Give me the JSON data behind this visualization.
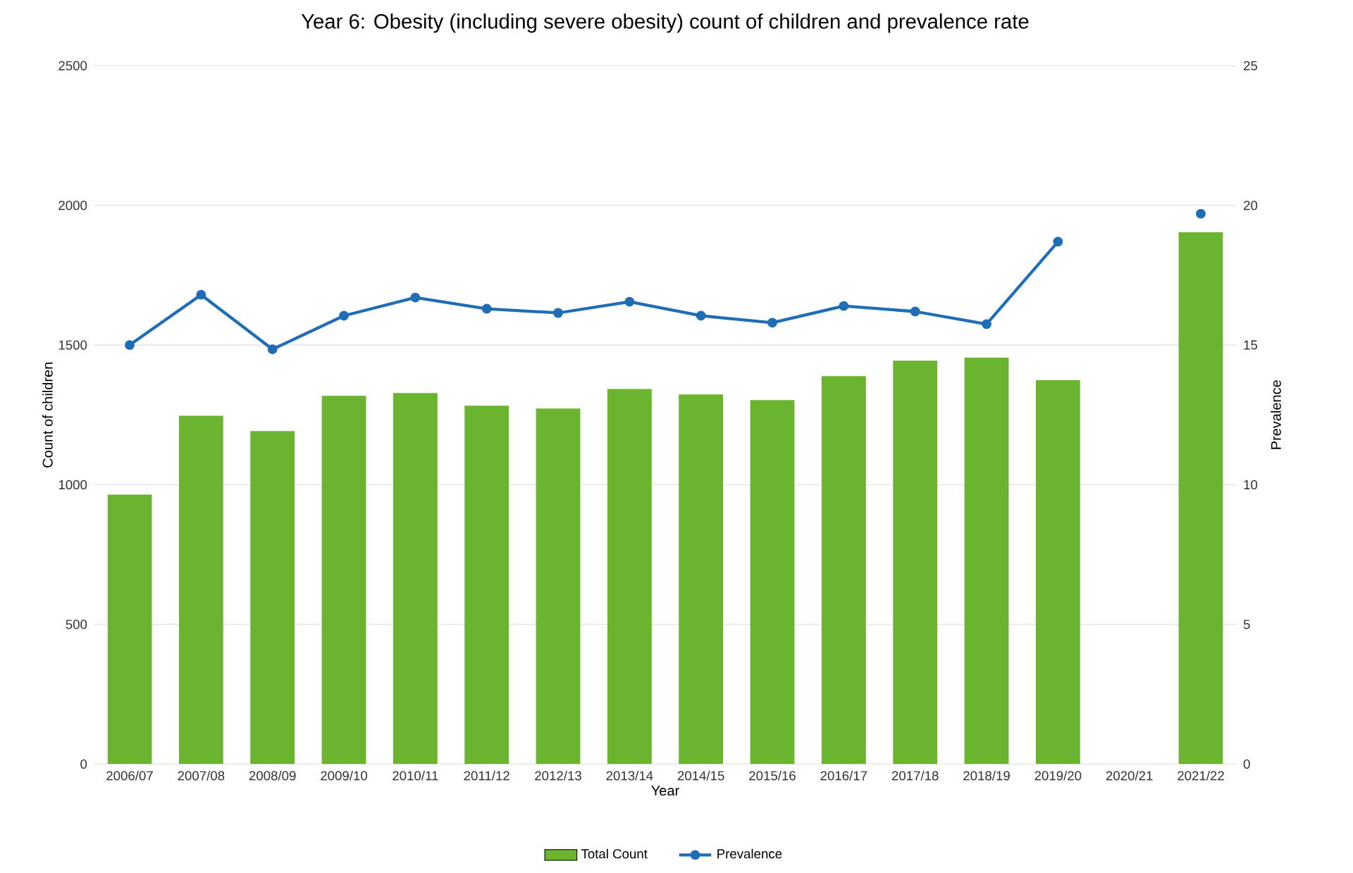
{
  "chart_data": {
    "type": "bar",
    "title": "Year 6: Obesity (including severe obesity) count of children and prevalence rate",
    "xlabel": "Year",
    "ylabel": "Count of children",
    "y2label": "Prevalence",
    "categories": [
      "2006/07",
      "2007/08",
      "2008/09",
      "2009/10",
      "2010/11",
      "2011/12",
      "2012/13",
      "2013/14",
      "2014/15",
      "2015/16",
      "2016/17",
      "2017/18",
      "2018/19",
      "2019/20",
      "2020/21",
      "2021/22"
    ],
    "series": [
      {
        "name": "Total Count",
        "color": "#6ab42f",
        "values": [
          965,
          1247,
          1192,
          1318,
          1328,
          1283,
          1273,
          1343,
          1323,
          1303,
          1389,
          1444,
          1455,
          1374,
          null,
          1904
        ]
      },
      {
        "name": "Prevalence",
        "type": "line",
        "axis": "y2",
        "color": "#1f6db4",
        "marker": "circle",
        "values": [
          15.0,
          16.8,
          14.85,
          16.05,
          16.7,
          16.3,
          16.15,
          16.55,
          16.05,
          15.8,
          16.4,
          16.2,
          15.75,
          18.7,
          null,
          19.7
        ]
      }
    ],
    "ylim": [
      0,
      2500
    ],
    "yticks": [
      0,
      500,
      1000,
      1500,
      2000,
      2500
    ],
    "y2lim": [
      0,
      25
    ],
    "y2ticks": [
      0,
      5,
      10,
      15,
      20,
      25
    ],
    "grid": "y",
    "legend": "bottom"
  }
}
